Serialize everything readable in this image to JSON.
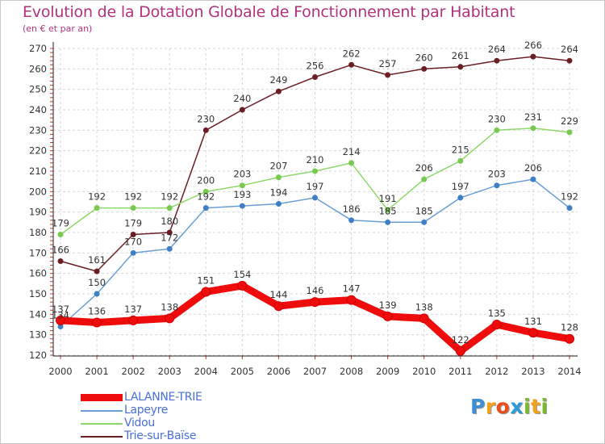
{
  "chart_data": {
    "type": "line",
    "title": "Evolution de la Dotation Globale de Fonctionnement par Habitant",
    "subtitle": "(en € et par an)",
    "categories": [
      "2000",
      "2001",
      "2002",
      "2003",
      "2004",
      "2005",
      "2006",
      "2007",
      "2008",
      "2009",
      "2010",
      "2011",
      "2012",
      "2013",
      "2014"
    ],
    "y_ticks": [
      "120",
      "130",
      "140",
      "150",
      "160",
      "170",
      "180",
      "190",
      "200",
      "210",
      "220",
      "230",
      "240",
      "250",
      "260",
      "270"
    ],
    "ylim": [
      120,
      270
    ],
    "grid": true,
    "legend_position": "bottom-left",
    "series": [
      {
        "name": "Trie-sur-Baïse",
        "color": "#6b1f24",
        "marker": "#6b1f24",
        "values": [
          166,
          161,
          179,
          180,
          230,
          240,
          249,
          256,
          262,
          257,
          260,
          261,
          264,
          266,
          264
        ],
        "labels": [
          "166",
          "161",
          "179",
          "180",
          "230",
          "240",
          "249",
          "256",
          "262",
          "257",
          "260",
          "261",
          "264",
          "266",
          "264"
        ]
      },
      {
        "name": "Vidou",
        "color": "#8fd96a",
        "marker": "#77c94f",
        "values": [
          179,
          192,
          192,
          192,
          200,
          203,
          207,
          210,
          214,
          191,
          206,
          215,
          230,
          231,
          229
        ],
        "labels": [
          "179",
          "192",
          "192",
          "192",
          "200",
          "203",
          "207",
          "210",
          "214",
          "191",
          "206",
          "215",
          "230",
          "231",
          "229"
        ]
      },
      {
        "name": "Lapeyre",
        "color": "#6b9fd4",
        "marker": "#3f7fc6",
        "values": [
          134,
          150,
          170,
          172,
          192,
          193,
          194,
          197,
          186,
          185,
          185,
          197,
          203,
          206,
          192
        ],
        "labels": [
          "134",
          "150",
          "170",
          "172",
          "192",
          "193",
          "194",
          "197",
          "186",
          "185",
          "185",
          "197",
          "203",
          "206",
          "192"
        ]
      },
      {
        "name": "LALANNE-TRIE",
        "color": "#ee0c0c",
        "marker": "#ee0c0c",
        "values": [
          137,
          136,
          137,
          138,
          151,
          154,
          144,
          146,
          147,
          139,
          138,
          122,
          135,
          131,
          128
        ],
        "labels": [
          "137",
          "136",
          "137",
          "138",
          "151",
          "154",
          "144",
          "146",
          "147",
          "139",
          "138",
          "122",
          "135",
          "131",
          "128"
        ]
      }
    ]
  },
  "legend": {
    "items": [
      {
        "label": "LALANNE-TRIE",
        "color": "#ee0c0c"
      },
      {
        "label": "Lapeyre",
        "color": "#6b9fd4"
      },
      {
        "label": "Vidou",
        "color": "#8fd96a"
      },
      {
        "label": "Trie-sur-Baïse",
        "color": "#6b1f24"
      }
    ]
  },
  "brand": {
    "letters": [
      "P",
      "r",
      "o",
      "x",
      "i",
      "t",
      "i"
    ],
    "colors": [
      "#3c8fd6",
      "#f0a21a",
      "#e94e1b",
      "#2f9ad8",
      "#7ab929",
      "#f0a21a",
      "#7ab929"
    ]
  }
}
